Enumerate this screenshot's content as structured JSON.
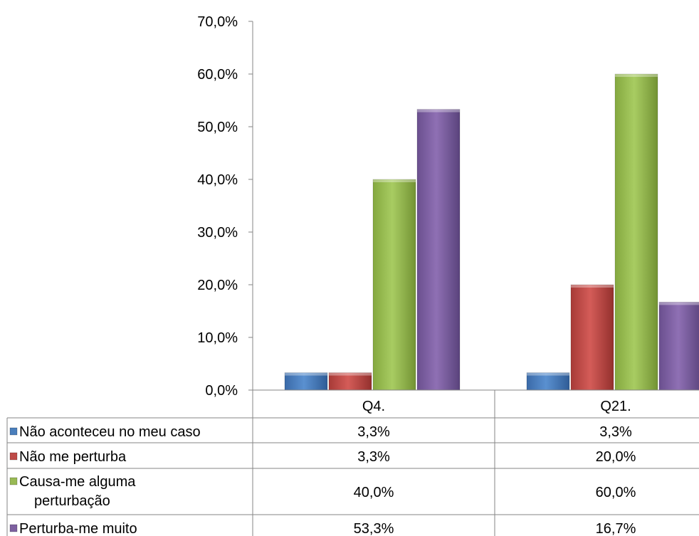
{
  "chart_data": {
    "type": "bar",
    "categories": [
      "Q4.",
      "Q21."
    ],
    "series": [
      {
        "name": "Não aconteceu no meu caso",
        "color": "#4a7ebb",
        "values": [
          3.3,
          3.3
        ],
        "labels": [
          "3,3%",
          "3,3%"
        ],
        "legend_lines": [
          "Não aconteceu no meu caso"
        ]
      },
      {
        "name": "Não me perturba",
        "color": "#be4b48",
        "values": [
          3.3,
          20.0
        ],
        "labels": [
          "3,3%",
          "20,0%"
        ],
        "legend_lines": [
          "Não me perturba"
        ]
      },
      {
        "name": "Causa-me alguma perturbação",
        "color": "#98b954",
        "values": [
          40.0,
          60.0
        ],
        "labels": [
          "40,0%",
          "60,0%"
        ],
        "legend_lines": [
          "Causa-me alguma",
          "perturbação"
        ]
      },
      {
        "name": "Perturba-me muito",
        "color": "#7d60a0",
        "values": [
          53.3,
          16.7
        ],
        "labels": [
          "53,3%",
          "16,7%"
        ],
        "legend_lines": [
          "Perturba-me muito"
        ]
      }
    ],
    "yticks": [
      "0,0%",
      "10,0%",
      "20,0%",
      "30,0%",
      "40,0%",
      "50,0%",
      "60,0%",
      "70,0%"
    ],
    "ylim": [
      0,
      70
    ],
    "grid": false,
    "legend": "data-table"
  }
}
